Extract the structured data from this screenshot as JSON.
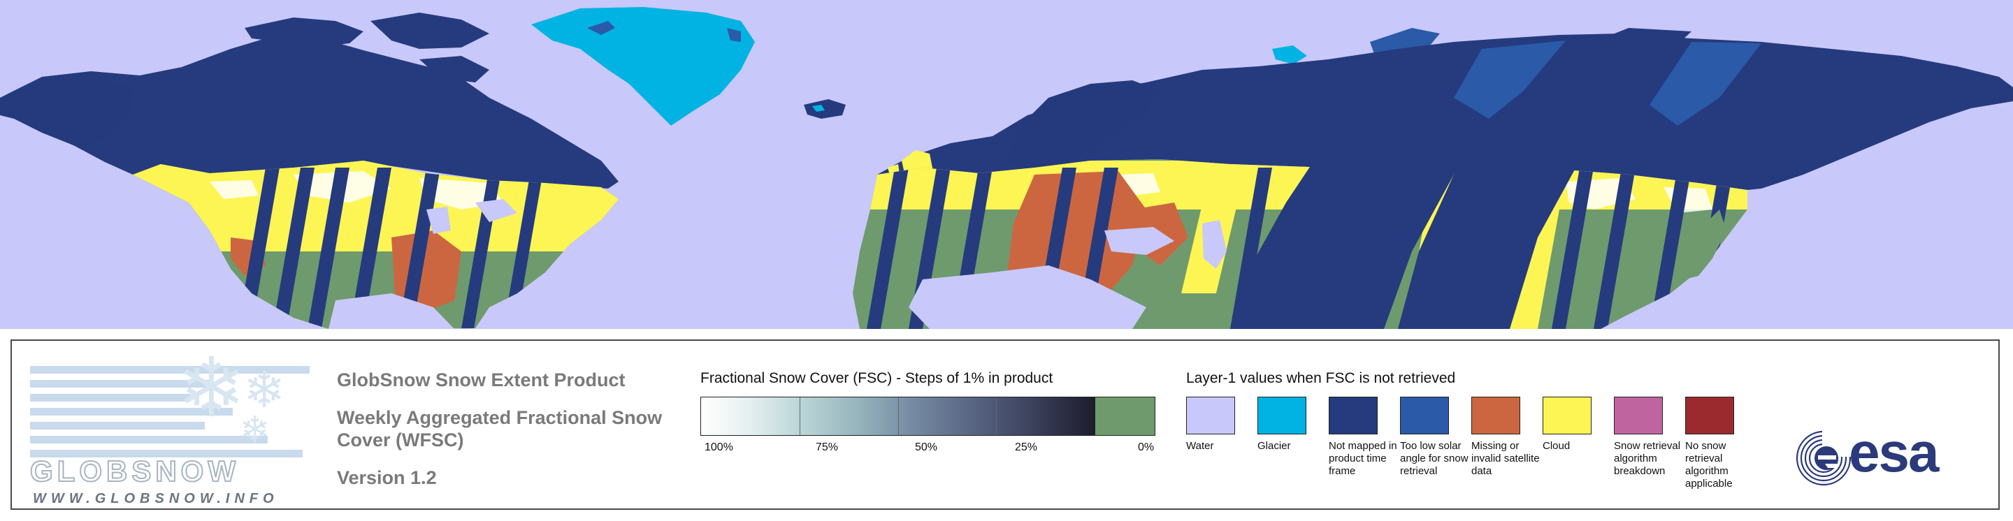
{
  "colors": {
    "water": "#c9c8fa",
    "glacier": "#00b3e3",
    "not_mapped": "#253b7e",
    "too_low_solar": "#2a5aa8",
    "missing_invalid": "#cc6640",
    "cloud": "#fdf554",
    "breakdown": "#c064a0",
    "no_retrieval": "#9a2a2e",
    "snow_free_green": "#6e9a6d"
  },
  "logo": {
    "word": "GLOBSNOW",
    "url": "WWW.GLOBSNOW.INFO"
  },
  "product": {
    "title": "GlobSnow Snow Extent Product",
    "subtitle": "Weekly Aggregated Fractional Snow Cover (WFSC)",
    "version": "Version 1.2"
  },
  "fsc_scale": {
    "title": "Fractional Snow Cover (FSC) - Steps of 1% in product",
    "labels": [
      "100%",
      "75%",
      "50%",
      "25%",
      "0%"
    ]
  },
  "layer1": {
    "title": "Layer-1 values when FSC is not retrieved",
    "items": [
      {
        "label": "Water",
        "color_key": "water"
      },
      {
        "label": "Glacier",
        "color_key": "glacier"
      },
      {
        "label": "Not mapped in product time frame",
        "color_key": "not_mapped"
      },
      {
        "label": "Too low solar angle for snow retrieval",
        "color_key": "too_low_solar"
      },
      {
        "label": "Missing or invalid satellite data",
        "color_key": "missing_invalid"
      },
      {
        "label": "Cloud",
        "color_key": "cloud"
      },
      {
        "label": "Snow retrieval algorithm breakdown",
        "color_key": "breakdown"
      },
      {
        "label": "No snow retrieval algorithm applicable",
        "color_key": "no_retrieval"
      }
    ]
  },
  "agency_logo": {
    "text": "esa"
  }
}
